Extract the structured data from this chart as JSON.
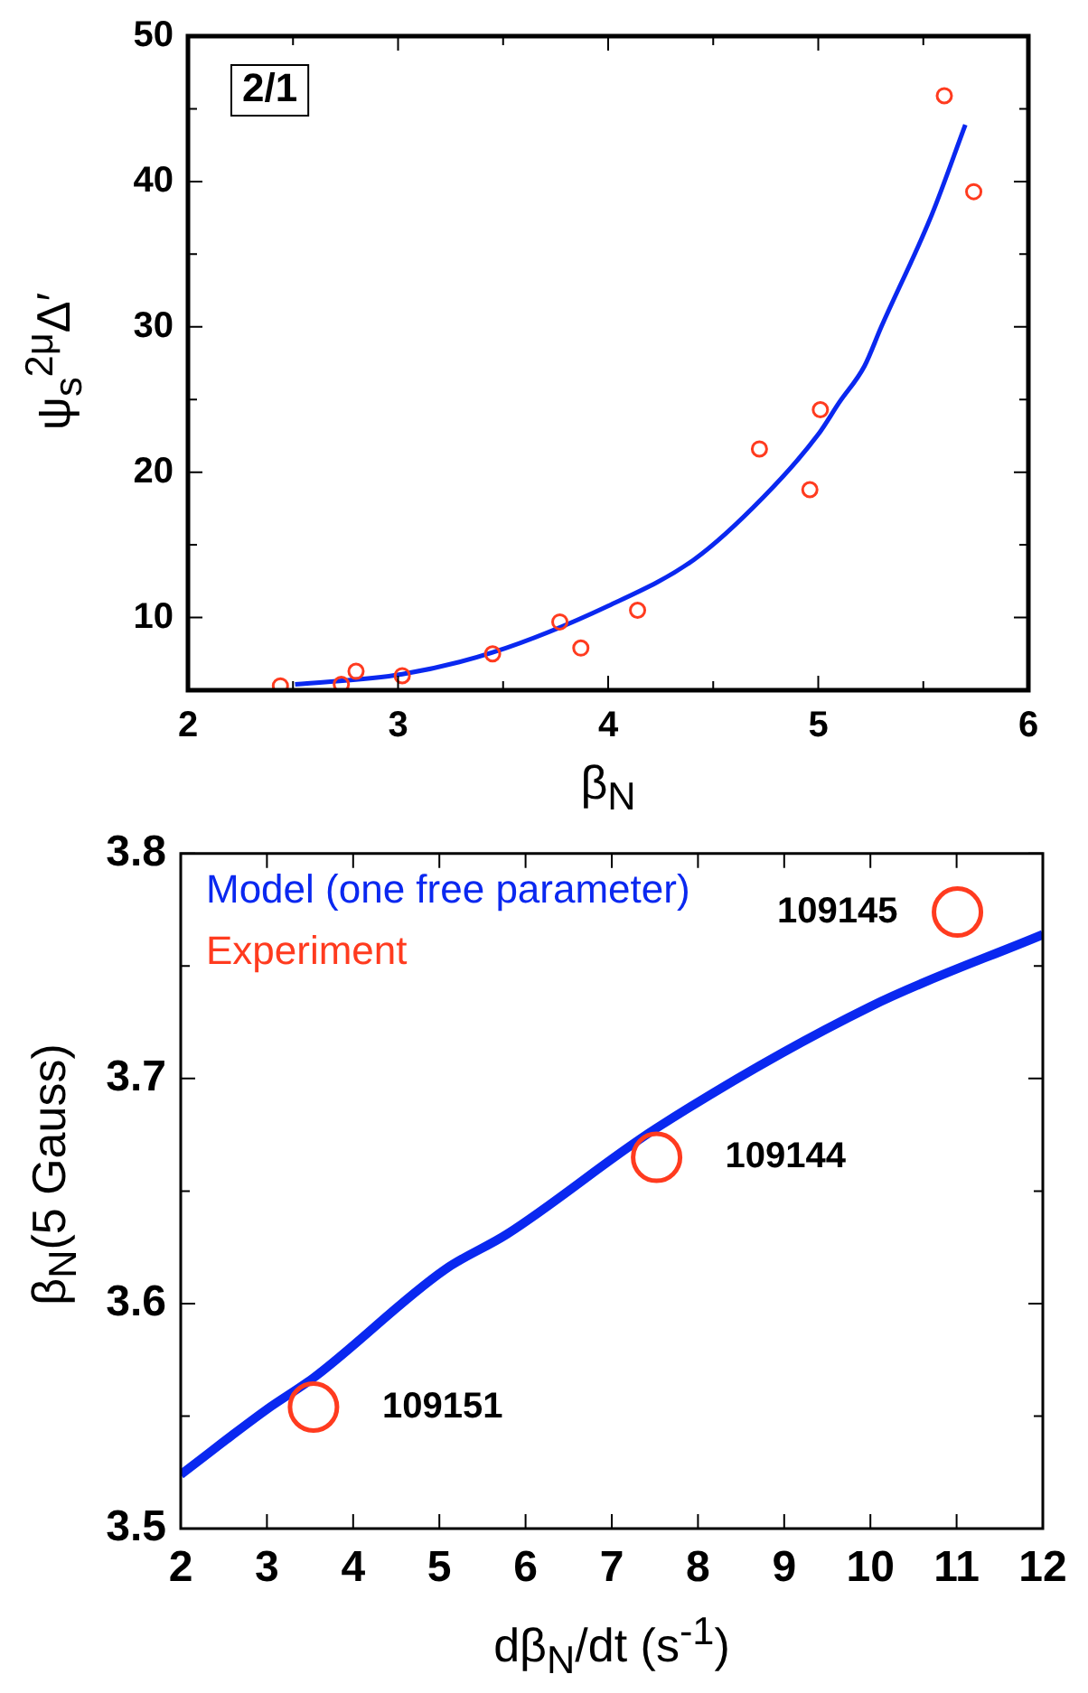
{
  "chart_data": [
    {
      "type": "scatter",
      "xlabel": "β$_{N}$",
      "ylabel": "ψ$_{s}$$^{2μ}$Δ′",
      "annotations": [
        "2/1"
      ],
      "xlim": [
        2,
        6
      ],
      "ylim": [
        5,
        50
      ],
      "xticks": [
        2,
        {
          "value": 2.5,
          "label": null
        },
        3,
        {
          "value": 3.5,
          "label": null
        },
        4,
        {
          "value": 4.5,
          "label": null
        },
        5,
        {
          "value": 5.5,
          "label": null
        },
        6
      ],
      "yticks": [
        10,
        {
          "value": 15,
          "label": null
        },
        20,
        {
          "value": 25,
          "label": null
        },
        30,
        {
          "value": 35,
          "label": null
        },
        40,
        {
          "value": 45,
          "label": null
        },
        50
      ],
      "series": [
        {
          "type": "scatter",
          "marker": "circle",
          "color": "#ff3b1f",
          "x": [
            2.44,
            2.73,
            2.8,
            3.02,
            3.45,
            3.77,
            3.87,
            4.14,
            4.72,
            4.96,
            5.01,
            5.6,
            5.74
          ],
          "values": [
            5.3,
            5.4,
            6.3,
            6.0,
            7.5,
            9.7,
            7.9,
            10.5,
            21.6,
            18.8,
            24.3,
            45.9,
            39.3
          ]
        },
        {
          "type": "line",
          "marker": "none",
          "color": "#0a28f0",
          "x": [
            2.51,
            3.02,
            3.45,
            4.0,
            4.41,
            4.74,
            5.0,
            5.1,
            5.22,
            5.3,
            5.54,
            5.7
          ],
          "values": [
            5.4,
            6.1,
            7.6,
            10.8,
            14.0,
            18.3,
            22.6,
            24.8,
            27.3,
            30,
            37.7,
            43.9
          ]
        }
      ]
    },
    {
      "type": "scatter",
      "xlabel": "dβ$_{N}$/dt (s$^{-1}$)",
      "ylabel": "β$_{N}$(5 Gauss)",
      "xlim": [
        2,
        12
      ],
      "ylim": [
        3.5,
        3.8
      ],
      "xticks": [
        2,
        3,
        4,
        5,
        6,
        7,
        8,
        9,
        10,
        11,
        12
      ],
      "yticks": [
        3.5,
        {
          "value": 3.55,
          "label": null
        },
        3.6,
        {
          "value": 3.65,
          "label": null
        },
        3.7,
        {
          "value": 3.75,
          "label": null
        },
        3.8
      ],
      "legend": "top left",
      "annotations": [
        {
          "text": "109145",
          "x": 11.01,
          "y": 3.774
        },
        {
          "text": "109144",
          "x": 7.52,
          "y": 3.665
        },
        {
          "text": "109151",
          "x": 3.54,
          "y": 3.554
        }
      ],
      "series": [
        {
          "type": "line",
          "marker": "none",
          "name": "Model (one free parameter)",
          "color": "#0a28f0",
          "x": [
            2,
            3,
            3.54,
            5.06,
            5.79,
            7.52,
            10,
            12
          ],
          "values": [
            3.524,
            3.553,
            3.567,
            3.615,
            3.631,
            3.678,
            3.732,
            3.764
          ]
        },
        {
          "type": "scatter",
          "marker": "circle",
          "name": "Experiment",
          "color": "#ff3b1f",
          "x": [
            3.54,
            7.52,
            11.01
          ],
          "values": [
            3.554,
            3.665,
            3.774
          ]
        }
      ]
    }
  ]
}
